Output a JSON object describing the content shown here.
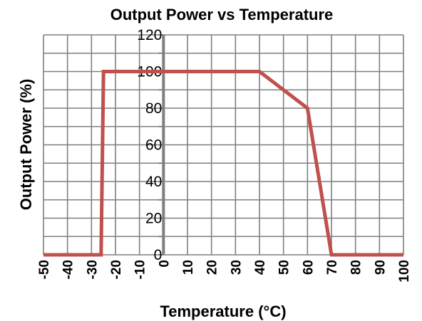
{
  "chart_data": {
    "type": "line",
    "title": "Output Power vs Temperature",
    "xlabel": "Temperature (°C)",
    "ylabel": "Output Power (%)",
    "xlim": [
      -50,
      100
    ],
    "ylim": [
      0,
      120
    ],
    "x_ticks": [
      "-50",
      "-40",
      "-30",
      "-20",
      "-10",
      "0",
      "10",
      "20",
      "30",
      "40",
      "50",
      "60",
      "70",
      "80",
      "90",
      "100"
    ],
    "y_ticks": [
      "0",
      "20",
      "40",
      "60",
      "80",
      "100",
      "120"
    ],
    "grid": true,
    "legend": "none",
    "series_color": "#c0504d",
    "series": [
      {
        "x": [
          -50,
          -26,
          -25,
          40,
          60,
          70,
          100
        ],
        "y": [
          0,
          0,
          100,
          100,
          80,
          0,
          0
        ]
      }
    ]
  }
}
